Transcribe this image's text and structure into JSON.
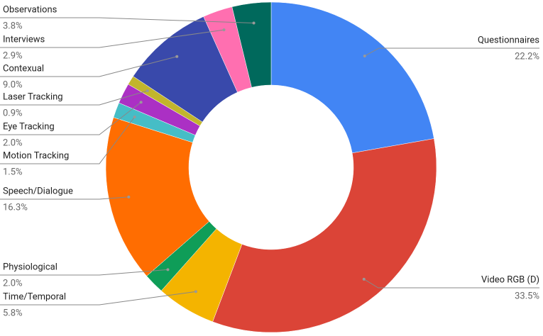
{
  "chart_data": {
    "type": "pie",
    "categories": [
      "Questionnaires",
      "Video RGB (D)",
      "Time/Temporal",
      "Physiological",
      "Speech/Dialogue",
      "Motion Tracking",
      "Eye Tracking",
      "Laser Tracking",
      "Contexual",
      "Interviews",
      "Observations"
    ],
    "values": [
      22.2,
      33.5,
      5.8,
      2.0,
      16.3,
      1.5,
      2.0,
      0.9,
      9.0,
      2.9,
      3.8
    ],
    "value_labels": [
      "22.2%",
      "33.5%",
      "5.8%",
      "2.0%",
      "16.3%",
      "1.5%",
      "2.0%",
      "0.9%",
      "9.0%",
      "2.9%",
      "3.8%"
    ],
    "colors": [
      "#4285f4",
      "#db4437",
      "#f4b400",
      "#0f9d58",
      "#ff6d01",
      "#46bdc6",
      "#ab30c4",
      "#c2b52c",
      "#3949ab",
      "#ff6fb0",
      "#00695c"
    ]
  }
}
